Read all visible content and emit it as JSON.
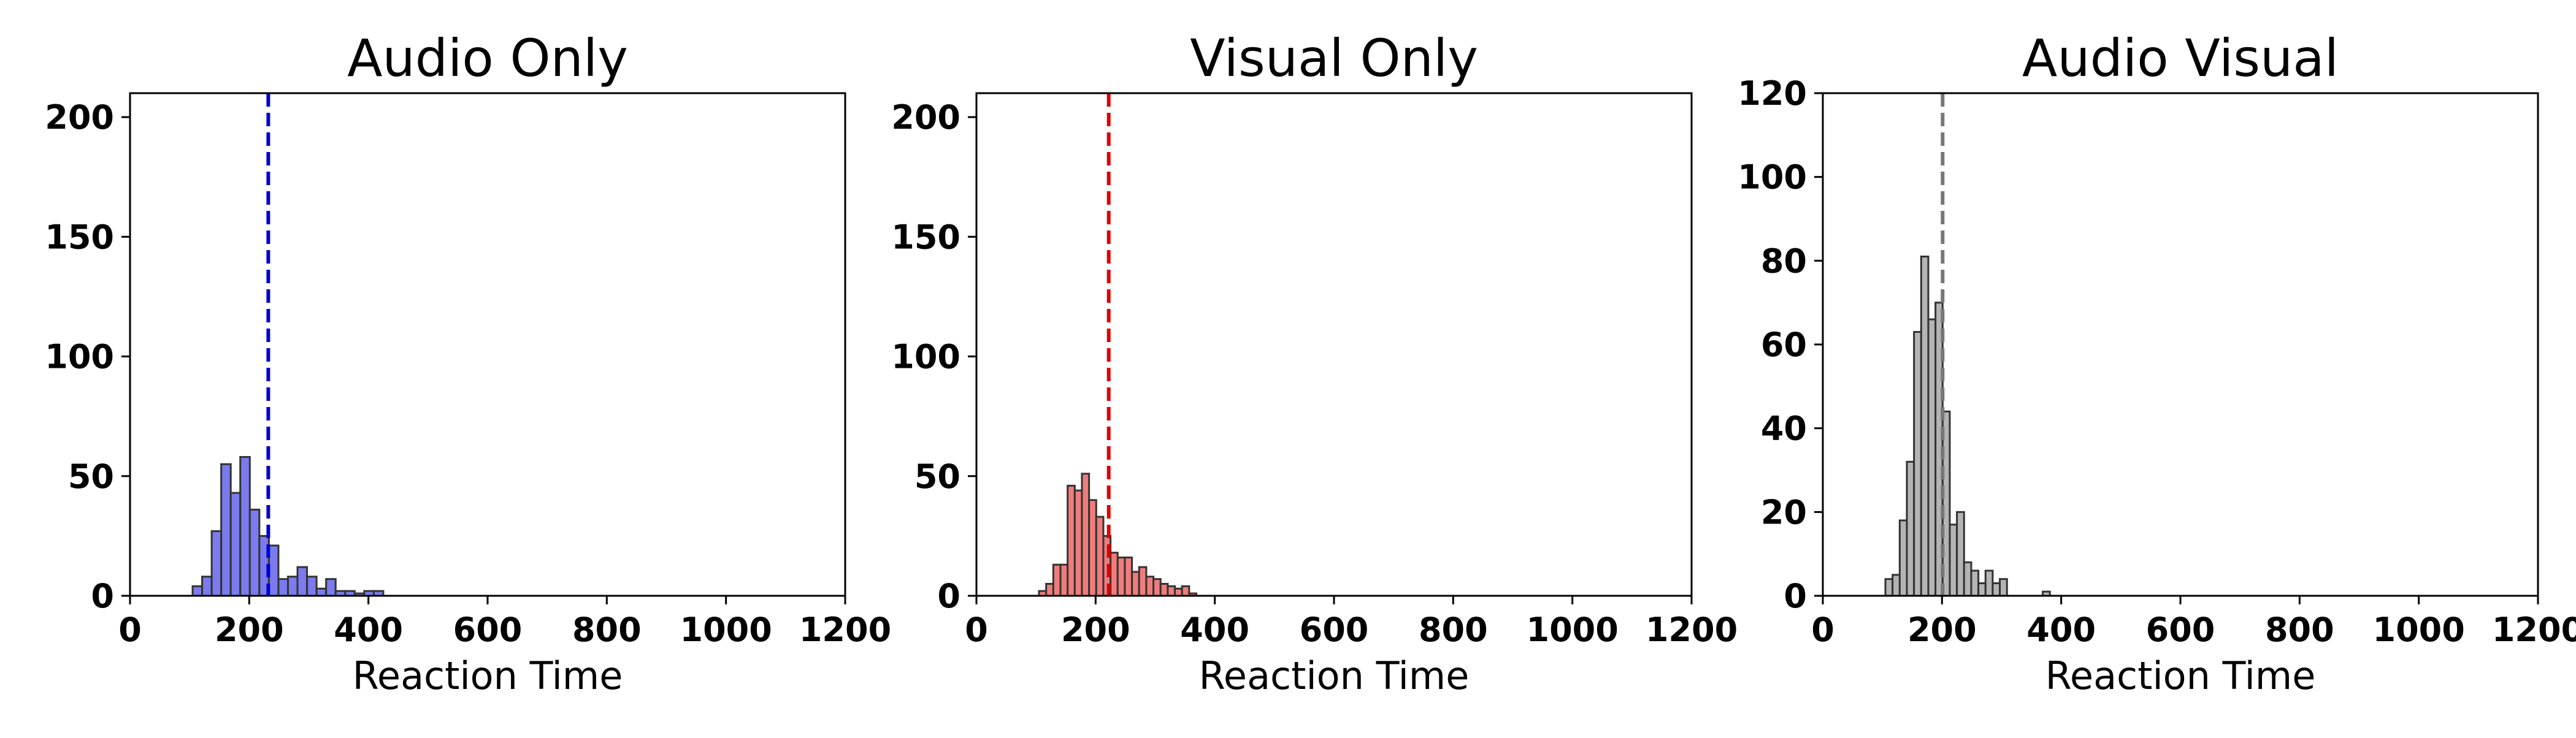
{
  "chart_data": [
    {
      "type": "bar",
      "title": "Audio Only",
      "xlabel": "Reaction Time",
      "ylabel": "",
      "xlim": [
        0,
        1200
      ],
      "ylim": [
        0,
        210
      ],
      "xticks": [
        0,
        200,
        400,
        600,
        800,
        1000,
        1200
      ],
      "yticks": [
        0,
        50,
        100,
        150,
        200
      ],
      "grid": false,
      "color": "#7b7bee",
      "mean_line": {
        "value": 232,
        "color": "#0000cc",
        "style": "dashed"
      },
      "bin_width": 16,
      "bin_start": 105,
      "values": [
        4,
        8,
        27,
        55,
        43,
        58,
        36,
        25,
        21,
        7,
        8,
        12,
        8,
        3,
        7,
        2,
        2,
        1,
        2,
        2
      ]
    },
    {
      "type": "bar",
      "title": "Visual Only",
      "xlabel": "Reaction Time",
      "ylabel": "",
      "xlim": [
        0,
        1200
      ],
      "ylim": [
        0,
        210
      ],
      "xticks": [
        0,
        200,
        400,
        600,
        800,
        1000,
        1200
      ],
      "yticks": [
        0,
        50,
        100,
        150,
        200
      ],
      "grid": false,
      "color": "#f07c7c",
      "mean_line": {
        "value": 222,
        "color": "#dd0000",
        "style": "dashed"
      },
      "bin_width": 12,
      "bin_start": 105,
      "values": [
        2,
        5,
        13,
        13,
        46,
        44,
        51,
        40,
        33,
        25,
        18,
        16,
        16,
        10,
        12,
        8,
        7,
        5,
        4,
        3,
        4,
        1
      ]
    },
    {
      "type": "bar",
      "title": "Audio Visual",
      "xlabel": "Reaction Time",
      "ylabel": "",
      "xlim": [
        0,
        1200
      ],
      "ylim": [
        0,
        120
      ],
      "xticks": [
        0,
        200,
        400,
        600,
        800,
        1000,
        1200
      ],
      "yticks": [
        0,
        20,
        40,
        60,
        80,
        100,
        120
      ],
      "grid": false,
      "color": "#b4b4b4",
      "mean_line": {
        "value": 201,
        "color": "#777777",
        "style": "dashed"
      },
      "bin_width": 12,
      "bin_start": 105,
      "values": [
        4,
        5,
        18,
        32,
        63,
        81,
        66,
        70,
        44,
        17,
        20,
        8,
        6,
        3,
        6,
        3,
        4,
        0,
        0,
        0,
        0,
        0,
        1
      ]
    }
  ]
}
